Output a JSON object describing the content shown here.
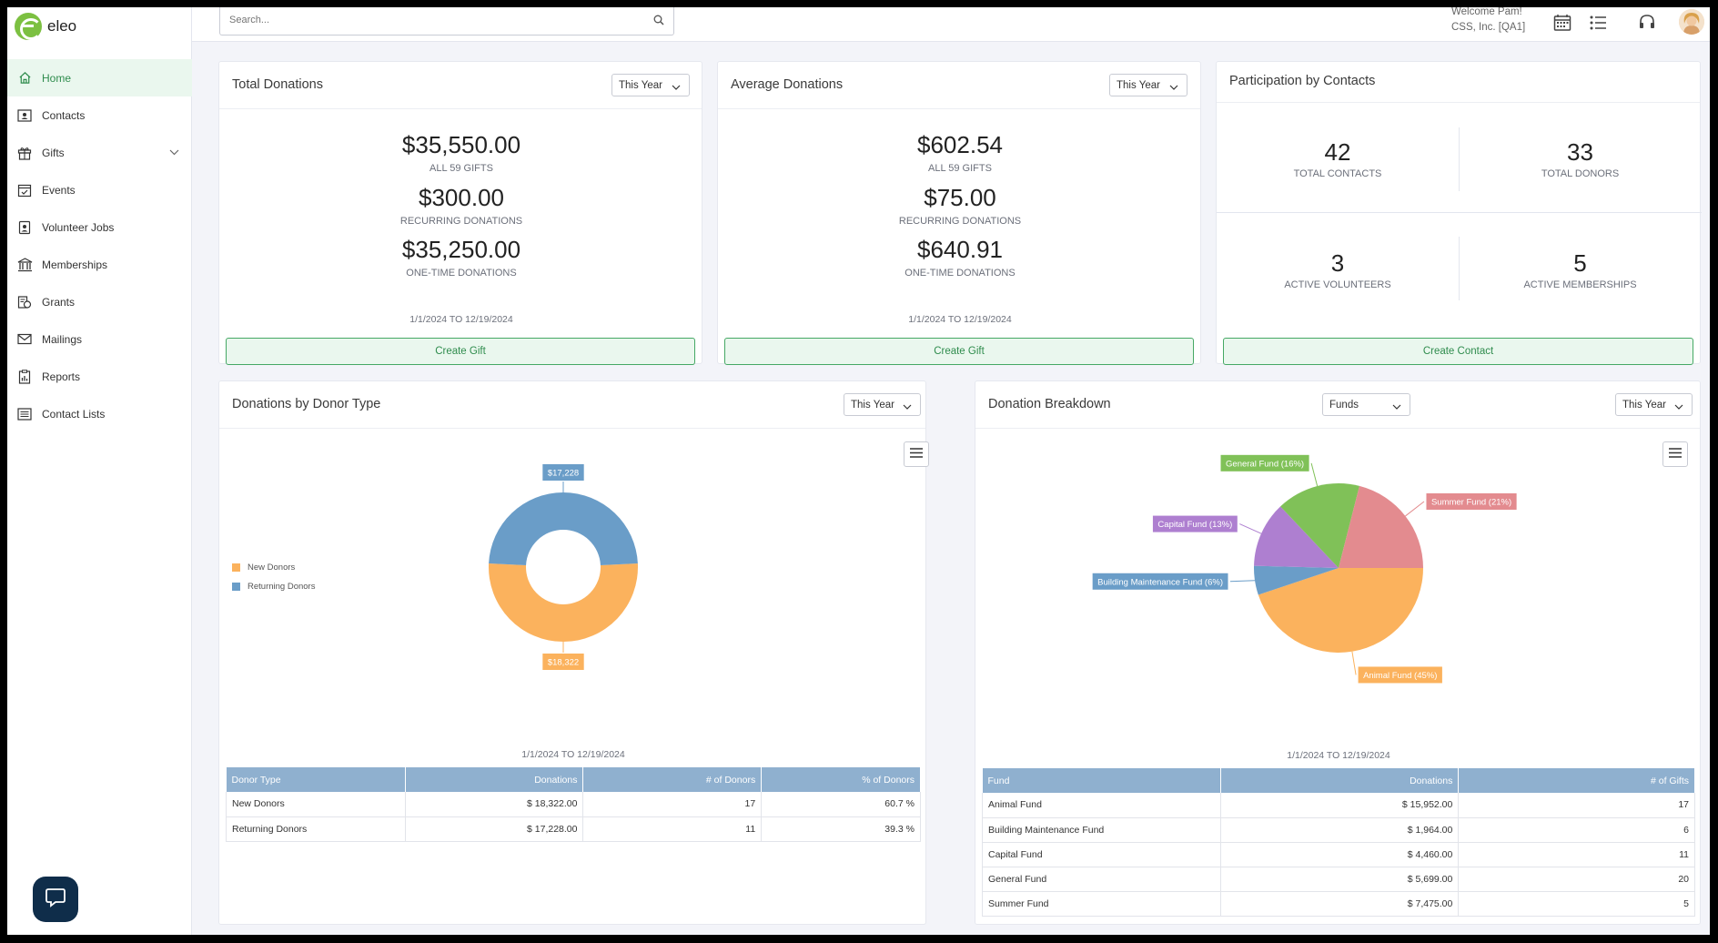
{
  "app": {
    "logo_text": "eleo"
  },
  "search": {
    "placeholder": "Search..."
  },
  "header": {
    "welcome": "Welcome Pam!",
    "org": "CSS, Inc. [QA1]"
  },
  "sidebar": {
    "items": [
      {
        "label": "Home",
        "icon": "home-icon",
        "active": true
      },
      {
        "label": "Contacts",
        "icon": "contact-card-icon"
      },
      {
        "label": "Gifts",
        "icon": "gift-icon",
        "expandable": true
      },
      {
        "label": "Events",
        "icon": "calendar-check-icon"
      },
      {
        "label": "Volunteer Jobs",
        "icon": "badge-icon"
      },
      {
        "label": "Memberships",
        "icon": "building-icon"
      },
      {
        "label": "Grants",
        "icon": "grant-icon"
      },
      {
        "label": "Mailings",
        "icon": "envelope-icon"
      },
      {
        "label": "Reports",
        "icon": "report-icon"
      },
      {
        "label": "Contact Lists",
        "icon": "list-icon"
      }
    ]
  },
  "total_donations": {
    "title": "Total Donations",
    "period": "This Year",
    "all_value": "$35,550.00",
    "all_label": "ALL 59 GIFTS",
    "recurring_value": "$300.00",
    "recurring_label": "RECURRING DONATIONS",
    "onetime_value": "$35,250.00",
    "onetime_label": "ONE-TIME DONATIONS",
    "date_range": "1/1/2024 TO 12/19/2024",
    "button": "Create Gift"
  },
  "average_donations": {
    "title": "Average Donations",
    "period": "This Year",
    "all_value": "$602.54",
    "all_label": "ALL 59 GIFTS",
    "recurring_value": "$75.00",
    "recurring_label": "RECURRING DONATIONS",
    "onetime_value": "$640.91",
    "onetime_label": "ONE-TIME DONATIONS",
    "date_range": "1/1/2024 TO 12/19/2024",
    "button": "Create Gift"
  },
  "participation": {
    "title": "Participation by Contacts",
    "total_contacts": "42",
    "total_contacts_label": "TOTAL CONTACTS",
    "total_donors": "33",
    "total_donors_label": "TOTAL DONORS",
    "active_volunteers": "3",
    "active_volunteers_label": "ACTIVE VOLUNTEERS",
    "active_memberships": "5",
    "active_memberships_label": "ACTIVE MEMBERSHIPS",
    "button": "Create Contact"
  },
  "donor_type": {
    "title": "Donations by Donor Type",
    "period": "This Year",
    "date_range": "1/1/2024 TO 12/19/2024",
    "table": {
      "headers": [
        "Donor Type",
        "Donations",
        "# of Donors",
        "% of Donors"
      ],
      "rows": [
        [
          "New Donors",
          "$ 18,322.00",
          "17",
          "60.7 %"
        ],
        [
          "Returning Donors",
          "$ 17,228.00",
          "11",
          "39.3 %"
        ]
      ]
    }
  },
  "breakdown": {
    "title": "Donation Breakdown",
    "group": "Funds",
    "period": "This Year",
    "date_range": "1/1/2024 TO 12/19/2024",
    "table": {
      "headers": [
        "Fund",
        "Donations",
        "# of Gifts"
      ],
      "rows": [
        [
          "Animal Fund",
          "$ 15,952.00",
          "17"
        ],
        [
          "Building Maintenance Fund",
          "$ 1,964.00",
          "6"
        ],
        [
          "Capital Fund",
          "$ 4,460.00",
          "11"
        ],
        [
          "General Fund",
          "$ 5,699.00",
          "20"
        ],
        [
          "Summer Fund",
          "$ 7,475.00",
          "5"
        ]
      ]
    }
  },
  "chart_data": [
    {
      "type": "pie",
      "donut": true,
      "legend_position": "left",
      "categories": [
        "New Donors",
        "Returning Donors"
      ],
      "values": [
        18322,
        17228
      ],
      "data_labels": [
        "$18,322",
        "$17,228"
      ],
      "colors": [
        "#fbb25d",
        "#6a9dc8"
      ]
    },
    {
      "type": "pie",
      "donut": false,
      "categories": [
        "Animal Fund",
        "Building Maintenance Fund",
        "Capital Fund",
        "General Fund",
        "Summer Fund"
      ],
      "values": [
        15952,
        1964,
        4460,
        5699,
        7475
      ],
      "data_labels": [
        "Animal Fund (45%)",
        "Building Maintenance Fund (6%)",
        "Capital Fund (13%)",
        "General Fund (16%)",
        "Summer Fund (21%)"
      ],
      "colors": [
        "#fbb25d",
        "#6a9dc8",
        "#ae7fd0",
        "#80c158",
        "#e38b8f"
      ]
    }
  ]
}
